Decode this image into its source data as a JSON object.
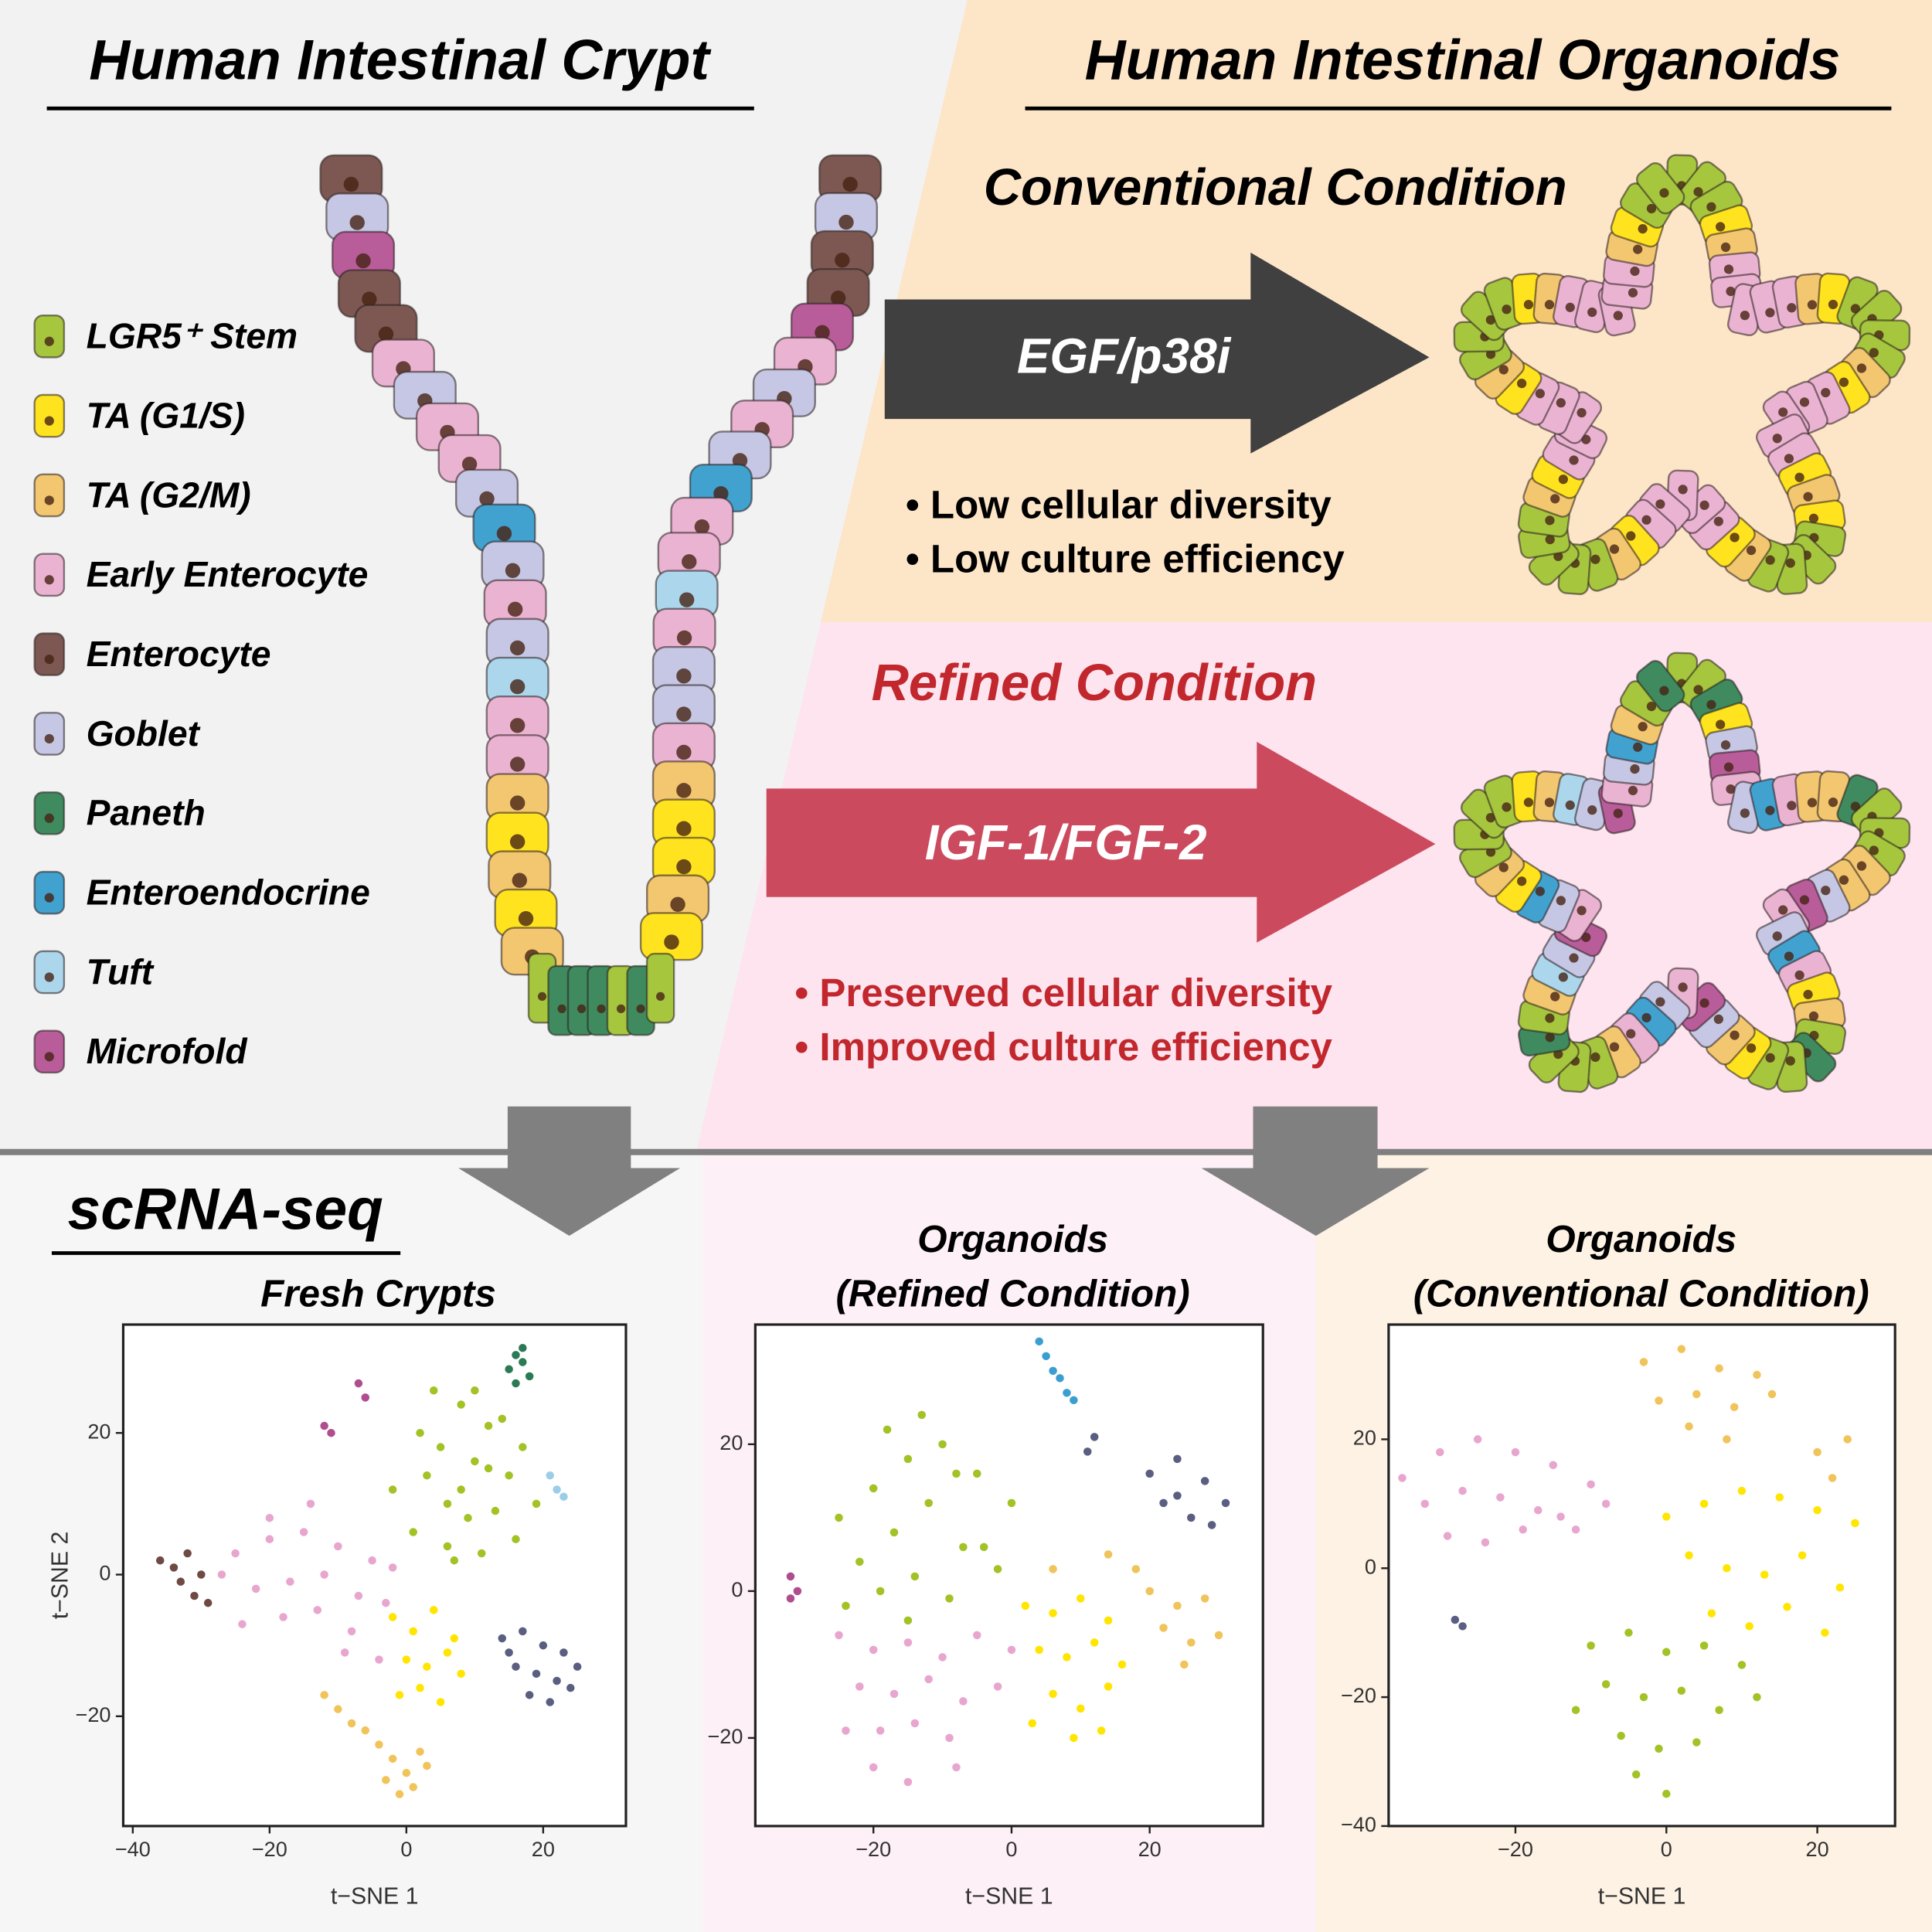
{
  "header": {
    "left_title": "Human Intestinal Crypt",
    "right_title": "Human Intestinal Organoids"
  },
  "legend": {
    "items": [
      {
        "label": "LGR5⁺ Stem",
        "color": "#a6c63e"
      },
      {
        "label": "TA (G1/S)",
        "color": "#ffe31f"
      },
      {
        "label": "TA (G2/M)",
        "color": "#f3c670"
      },
      {
        "label": "Early Enterocyte",
        "color": "#ebb3d2"
      },
      {
        "label": "Enterocyte",
        "color": "#7d5852"
      },
      {
        "label": "Goblet",
        "color": "#c6c7e4"
      },
      {
        "label": "Paneth",
        "color": "#3f8a5f"
      },
      {
        "label": "Enteroendocrine",
        "color": "#41a2d0"
      },
      {
        "label": "Tuft",
        "color": "#acd6ec"
      },
      {
        "label": "Microfold",
        "color": "#b95c9a"
      }
    ]
  },
  "conventional": {
    "title": "Conventional Condition",
    "treatment": "EGF/p38i",
    "bullets": [
      "• Low cellular diversity",
      "• Low culture efficiency"
    ]
  },
  "refined": {
    "title": "Refined Condition",
    "treatment": "IGF-1/FGF-2",
    "bullets": [
      "• Preserved cellular diversity",
      "• Improved culture efficiency"
    ]
  },
  "scrna": {
    "title": "scRNA-seq"
  },
  "chart_data": [
    {
      "type": "scatter",
      "title": [
        "Fresh Crypts"
      ],
      "xlabel": "t−SNE 1",
      "ylabel": "t−SNE 2",
      "xlim": [
        -41.4,
        32.1
      ],
      "ylim": [
        -35.5,
        35.3
      ],
      "xticks": [
        {
          "value": -40,
          "label": "−40"
        },
        {
          "value": -20,
          "label": "−20"
        },
        0,
        20
      ],
      "yticks": [
        {
          "value": -20,
          "label": "−20"
        },
        0,
        20
      ],
      "series": [
        {
          "color": "#a3c226",
          "x": [
            2,
            5,
            8,
            10,
            12,
            15,
            6,
            9,
            13,
            3,
            7,
            11,
            14,
            17,
            4,
            8,
            12,
            1,
            10,
            6,
            16,
            -2,
            19
          ],
          "y": [
            20,
            18,
            24,
            16,
            21,
            14,
            10,
            8,
            9,
            14,
            2,
            3,
            22,
            18,
            26,
            12,
            15,
            6,
            26,
            4,
            5,
            12,
            10
          ]
        },
        {
          "color": "#e8a6cf",
          "x": [
            -25,
            -20,
            -15,
            -10,
            -5,
            -22,
            -17,
            -12,
            -7,
            -2,
            -24,
            -18,
            -13,
            -8,
            -3,
            -20,
            -14,
            -9,
            -27,
            -4
          ],
          "y": [
            3,
            5,
            6,
            4,
            2,
            -2,
            -1,
            0,
            -3,
            1,
            -7,
            -6,
            -5,
            -8,
            -4,
            8,
            10,
            -11,
            0,
            -12
          ]
        },
        {
          "color": "#6e4a43",
          "x": [
            -36,
            -34,
            -32,
            -30,
            -33,
            -31,
            -29
          ],
          "y": [
            2,
            1,
            3,
            0,
            -1,
            -3,
            -4
          ]
        },
        {
          "color": "#ffe500",
          "x": [
            -2,
            1,
            4,
            7,
            0,
            3,
            6,
            2,
            5,
            8,
            -1
          ],
          "y": [
            -6,
            -8,
            -5,
            -9,
            -12,
            -13,
            -11,
            -16,
            -18,
            -14,
            -17
          ]
        },
        {
          "color": "#f0c45a",
          "x": [
            -12,
            -10,
            -8,
            -6,
            -4,
            -2,
            0,
            1,
            2,
            -3,
            -1,
            3
          ],
          "y": [
            -17,
            -19,
            -21,
            -22,
            -24,
            -26,
            -28,
            -30,
            -25,
            -29,
            -31,
            -27
          ]
        },
        {
          "color": "#5a5e80",
          "x": [
            14,
            17,
            20,
            23,
            16,
            19,
            22,
            25,
            18,
            21,
            15,
            24
          ],
          "y": [
            -9,
            -8,
            -10,
            -11,
            -13,
            -14,
            -15,
            -13,
            -17,
            -18,
            -11,
            -16
          ]
        },
        {
          "color": "#2c7a55",
          "x": [
            15,
            16,
            17,
            18,
            16,
            17
          ],
          "y": [
            29,
            31,
            30,
            28,
            27,
            32
          ]
        },
        {
          "color": "#b04d8e",
          "x": [
            -7,
            -6,
            -12,
            -11
          ],
          "y": [
            27,
            25,
            21,
            20
          ]
        },
        {
          "color": "#9ccde8",
          "x": [
            21,
            22,
            23
          ],
          "y": [
            14,
            12,
            11
          ]
        }
      ]
    },
    {
      "type": "scatter",
      "title": [
        "Organoids",
        "(Refined Condition)"
      ],
      "xlabel": "t−SNE 1",
      "xlim": [
        -37.1,
        36.4
      ],
      "ylim": [
        -32,
        36.3
      ],
      "xticks": [
        {
          "value": -20,
          "label": "−20"
        },
        0,
        20
      ],
      "yticks": [
        {
          "value": -20,
          "label": "−20"
        },
        0,
        20
      ],
      "series": [
        {
          "color": "#a3c226",
          "x": [
            -25,
            -20,
            -15,
            -10,
            -5,
            0,
            -22,
            -17,
            -12,
            -7,
            -2,
            -24,
            -19,
            -14,
            -9,
            -4,
            -18,
            -13,
            -8,
            -15
          ],
          "y": [
            10,
            14,
            18,
            20,
            16,
            12,
            4,
            8,
            12,
            6,
            3,
            -2,
            0,
            2,
            -1,
            6,
            22,
            24,
            16,
            -4
          ]
        },
        {
          "color": "#e8a6cf",
          "x": [
            -25,
            -20,
            -15,
            -10,
            -5,
            0,
            -22,
            -17,
            -12,
            -7,
            -2,
            -19,
            -14,
            -9,
            -20,
            -15,
            -24,
            -8
          ],
          "y": [
            -6,
            -8,
            -7,
            -9,
            -6,
            -8,
            -13,
            -14,
            -12,
            -15,
            -13,
            -19,
            -18,
            -20,
            -24,
            -26,
            -19,
            -24
          ]
        },
        {
          "color": "#ffe500",
          "x": [
            2,
            6,
            10,
            14,
            4,
            8,
            12,
            16,
            6,
            10,
            14,
            3,
            9,
            13
          ],
          "y": [
            -2,
            -3,
            -1,
            -4,
            -8,
            -9,
            -7,
            -10,
            -14,
            -16,
            -13,
            -18,
            -20,
            -19
          ]
        },
        {
          "color": "#f0c45a",
          "x": [
            20,
            24,
            28,
            22,
            26,
            30,
            25,
            18,
            14,
            6
          ],
          "y": [
            0,
            -2,
            -1,
            -5,
            -7,
            -6,
            -10,
            3,
            5,
            3
          ]
        },
        {
          "color": "#5a5e80",
          "x": [
            20,
            24,
            28,
            31,
            22,
            26,
            29,
            24,
            12,
            11
          ],
          "y": [
            16,
            18,
            15,
            12,
            12,
            10,
            9,
            13,
            21,
            19
          ]
        },
        {
          "color": "#3a9fd0",
          "x": [
            4,
            5,
            6,
            7,
            8,
            9
          ],
          "y": [
            34,
            32,
            30,
            29,
            27,
            26
          ]
        },
        {
          "color": "#b04d8e",
          "x": [
            -32,
            -31,
            -32
          ],
          "y": [
            2,
            0,
            -1
          ]
        }
      ]
    },
    {
      "type": "scatter",
      "title": [
        "Organoids",
        "(Conventional Condition)"
      ],
      "xlabel": "t−SNE 1",
      "xlim": [
        -36.8,
        30.3
      ],
      "ylim": [
        -40,
        37.8
      ],
      "xticks": [
        {
          "value": -20,
          "label": "−20"
        },
        0,
        20
      ],
      "yticks": [
        {
          "value": -40,
          "label": "−40"
        },
        {
          "value": -20,
          "label": "−20"
        },
        0,
        20
      ],
      "series": [
        {
          "color": "#e8a6cf",
          "x": [
            -35,
            -30,
            -25,
            -20,
            -15,
            -10,
            -32,
            -27,
            -22,
            -17,
            -12,
            -29,
            -24,
            -19,
            -14,
            -8
          ],
          "y": [
            14,
            18,
            20,
            18,
            16,
            13,
            10,
            12,
            11,
            9,
            6,
            5,
            4,
            6,
            8,
            10
          ]
        },
        {
          "color": "#f0c45a",
          "x": [
            -3,
            2,
            7,
            12,
            -1,
            4,
            9,
            14,
            20,
            24,
            22,
            3,
            8
          ],
          "y": [
            32,
            34,
            31,
            30,
            26,
            27,
            25,
            27,
            18,
            20,
            14,
            22,
            20
          ]
        },
        {
          "color": "#ffe500",
          "x": [
            0,
            5,
            10,
            15,
            20,
            25,
            3,
            8,
            13,
            18,
            23,
            6,
            11,
            16,
            21
          ],
          "y": [
            8,
            10,
            12,
            11,
            9,
            7,
            2,
            0,
            -1,
            2,
            -3,
            -7,
            -9,
            -6,
            -10
          ]
        },
        {
          "color": "#a3c226",
          "x": [
            -10,
            -5,
            0,
            5,
            10,
            -8,
            -3,
            2,
            7,
            12,
            -6,
            -1,
            4,
            -4,
            0,
            -12
          ],
          "y": [
            -12,
            -10,
            -13,
            -12,
            -15,
            -18,
            -20,
            -19,
            -22,
            -20,
            -26,
            -28,
            -27,
            -32,
            -35,
            -22
          ]
        },
        {
          "color": "#5a5e80",
          "x": [
            -28,
            -27
          ],
          "y": [
            -8,
            -9
          ]
        }
      ]
    }
  ]
}
